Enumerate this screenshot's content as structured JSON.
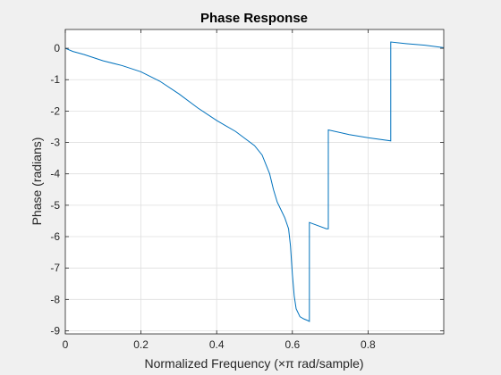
{
  "chart_data": {
    "type": "line",
    "title": "Phase Response",
    "xlabel": "Normalized Frequency (×π rad/sample)",
    "ylabel": "Phase (radians)",
    "xlim": [
      0,
      1
    ],
    "ylim": [
      -9.1,
      0.6
    ],
    "x_ticks": [
      0,
      0.2,
      0.4,
      0.6,
      0.8
    ],
    "x_tick_labels": [
      "0",
      "0.2",
      "0.4",
      "0.6",
      "0.8"
    ],
    "y_ticks": [
      0,
      -1,
      -2,
      -3,
      -4,
      -5,
      -6,
      -7,
      -8,
      -9
    ],
    "y_tick_labels": [
      "0",
      "-1",
      "-2",
      "-3",
      "-4",
      "-5",
      "-6",
      "-7",
      "-8",
      "-9"
    ],
    "grid": true,
    "series": [
      {
        "color": "#0072bd",
        "x": [
          0,
          0.02,
          0.05,
          0.1,
          0.15,
          0.2,
          0.25,
          0.3,
          0.35,
          0.4,
          0.45,
          0.5,
          0.52,
          0.54,
          0.55,
          0.56,
          0.57,
          0.58,
          0.59,
          0.595,
          0.6,
          0.605,
          0.61,
          0.62,
          0.63,
          0.64,
          0.645,
          0.645,
          0.69,
          0.695,
          0.695,
          0.75,
          0.8,
          0.86,
          0.86,
          0.9,
          0.95,
          1.0
        ],
        "y": [
          0,
          -0.1,
          -0.2,
          -0.4,
          -0.55,
          -0.75,
          -1.05,
          -1.45,
          -1.9,
          -2.3,
          -2.65,
          -3.1,
          -3.4,
          -4.0,
          -4.5,
          -4.9,
          -5.15,
          -5.4,
          -5.75,
          -6.3,
          -7.2,
          -7.9,
          -8.3,
          -8.55,
          -8.62,
          -8.67,
          -8.7,
          -5.55,
          -5.75,
          -5.75,
          -2.6,
          -2.75,
          -2.85,
          -2.95,
          0.2,
          0.15,
          0.1,
          0.02
        ]
      }
    ]
  }
}
